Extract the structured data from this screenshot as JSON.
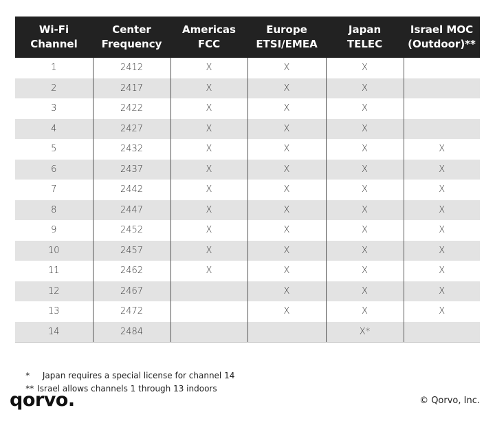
{
  "table": {
    "headers": [
      "Wi-Fi\nChannel",
      "Center\nFrequency",
      "Americas\nFCC",
      "Europe\nETSI/EMEA",
      "Japan\nTELEC",
      "Israel MOC\n(Outdoor)**"
    ],
    "rows": [
      [
        "1",
        "2412",
        "X",
        "X",
        "X",
        ""
      ],
      [
        "2",
        "2417",
        "X",
        "X",
        "X",
        ""
      ],
      [
        "3",
        "2422",
        "X",
        "X",
        "X",
        ""
      ],
      [
        "4",
        "2427",
        "X",
        "X",
        "X",
        ""
      ],
      [
        "5",
        "2432",
        "X",
        "X",
        "X",
        "X"
      ],
      [
        "6",
        "2437",
        "X",
        "X",
        "X",
        "X"
      ],
      [
        "7",
        "2442",
        "X",
        "X",
        "X",
        "X"
      ],
      [
        "8",
        "2447",
        "X",
        "X",
        "X",
        "X"
      ],
      [
        "9",
        "2452",
        "X",
        "X",
        "X",
        "X"
      ],
      [
        "10",
        "2457",
        "X",
        "X",
        "X",
        "X"
      ],
      [
        "11",
        "2462",
        "X",
        "X",
        "X",
        "X"
      ],
      [
        "12",
        "2467",
        "",
        "X",
        "X",
        "X"
      ],
      [
        "13",
        "2472",
        "",
        "X",
        "X",
        "X"
      ],
      [
        "14",
        "2484",
        "",
        "",
        "X*",
        ""
      ]
    ]
  },
  "notes": [
    {
      "mark": "*",
      "text": "  Japan requires a special license for channel 14"
    },
    {
      "mark": "**",
      "text": "Israel allows channels 1 through 13 indoors"
    }
  ],
  "brand": {
    "logo_text": "qorvo.",
    "copyright": "© Qorvo, Inc."
  }
}
